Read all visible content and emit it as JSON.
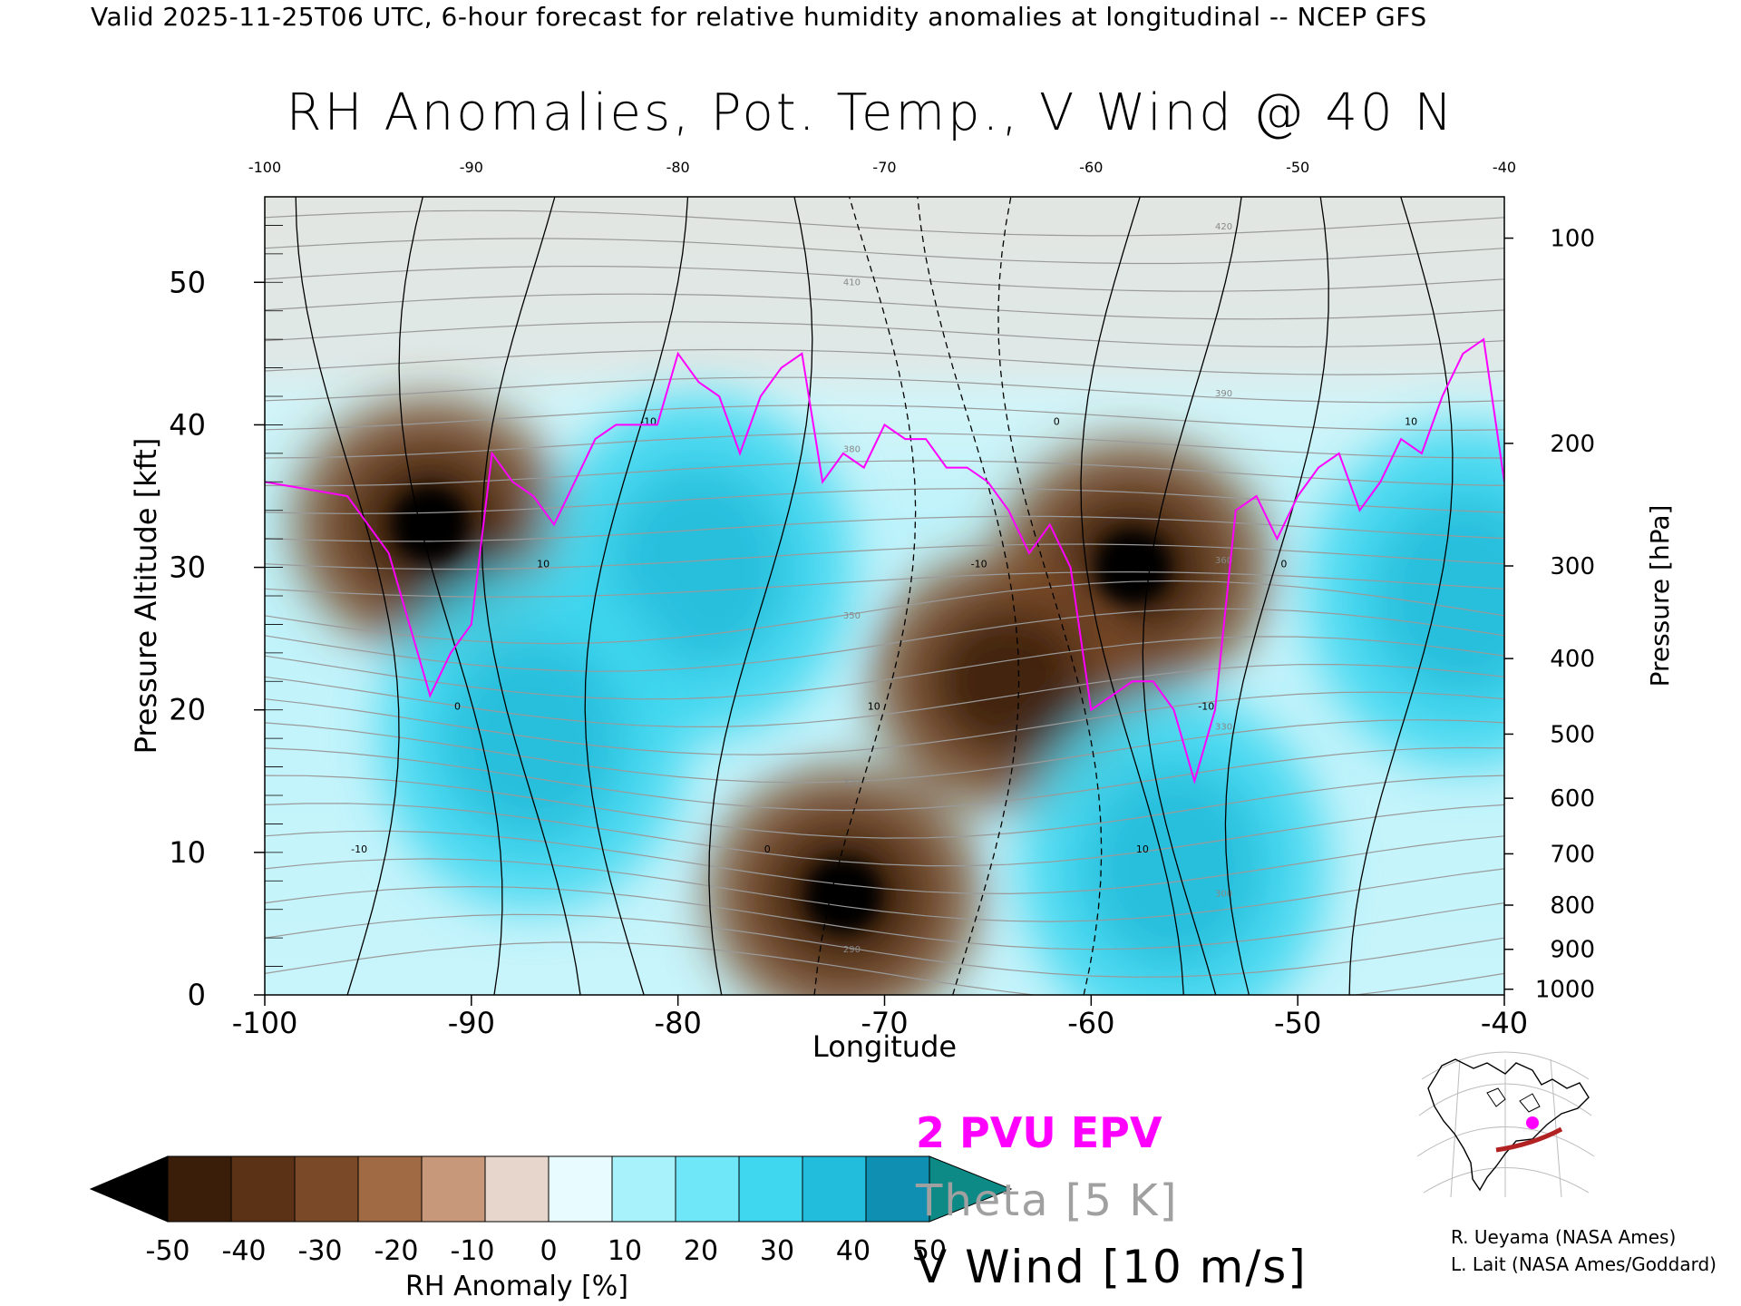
{
  "header": {
    "valid_line": "Valid 2025-11-25T06 UTC, 6-hour forecast for relative humidity anomalies at longitudinal -- NCEP GFS"
  },
  "chart_data": {
    "type": "heatmap",
    "title": "RH Anomalies, Pot. Temp., V Wind @ 40 N",
    "xlabel": "Longitude",
    "ylabel_left": "Pressure Altitude [kft]",
    "ylabel_right": "Pressure [hPa]",
    "xlim": [
      -100,
      -40
    ],
    "ylim": [
      0,
      56
    ],
    "x_ticks_bottom": [
      "-100",
      "-90",
      "-80",
      "-70",
      "-60",
      "-50",
      "-40"
    ],
    "x_ticks_top": [
      "-100",
      "-90",
      "-80",
      "-70",
      "-60",
      "-50",
      "-40"
    ],
    "y_ticks_left": [
      "0",
      "10",
      "20",
      "30",
      "40",
      "50"
    ],
    "y_ticks_left_values": [
      0,
      10,
      20,
      30,
      40,
      50
    ],
    "y_ticks_right": [
      "1000",
      "900",
      "800",
      "700",
      "600",
      "500",
      "400",
      "300",
      "200",
      "100"
    ],
    "y_ticks_right_kft": [
      0.4,
      3.2,
      6.3,
      9.9,
      13.8,
      18.3,
      23.6,
      30.1,
      38.7,
      53.1
    ],
    "anomaly_regions": [
      {
        "sign": "dry",
        "lon": -92,
        "kft": 33,
        "strength": 3
      },
      {
        "sign": "dry",
        "lon": -58,
        "kft": 30,
        "strength": 3
      },
      {
        "sign": "dry",
        "lon": -72,
        "kft": 7,
        "strength": 3
      },
      {
        "sign": "dry",
        "lon": -64,
        "kft": 22,
        "strength": 2
      },
      {
        "sign": "moist",
        "lon": -79,
        "kft": 30,
        "strength": 2
      },
      {
        "sign": "moist",
        "lon": -87,
        "kft": 18,
        "strength": 2
      },
      {
        "sign": "moist",
        "lon": -56,
        "kft": 9,
        "strength": 2
      },
      {
        "sign": "moist",
        "lon": -42,
        "kft": 28,
        "strength": 2
      }
    ],
    "pvu_2_line": {
      "lon": [
        -100,
        -96,
        -94,
        -92,
        -91,
        -90,
        -89,
        -88,
        -87,
        -86,
        -85,
        -84,
        -83,
        -82,
        -81,
        -80,
        -79,
        -78,
        -77,
        -76,
        -75,
        -74,
        -73,
        -72,
        -71,
        -70,
        -69,
        -68,
        -67,
        -66,
        -65,
        -64,
        -63,
        -62,
        -61,
        -60,
        -59,
        -58,
        -57,
        -56,
        -55,
        -54,
        -53,
        -52,
        -51,
        -50,
        -49,
        -48,
        -47,
        -46,
        -45,
        -44,
        -43,
        -42,
        -41,
        -40
      ],
      "kft": [
        36,
        35,
        31,
        21,
        24,
        26,
        38,
        36,
        35,
        33,
        36,
        39,
        40,
        40,
        40,
        45,
        43,
        42,
        38,
        42,
        44,
        45,
        36,
        38,
        37,
        40,
        39,
        39,
        37,
        37,
        36,
        34,
        31,
        33,
        30,
        20,
        21,
        22,
        22,
        20,
        15,
        20,
        34,
        35,
        32,
        35,
        37,
        38,
        34,
        36,
        39,
        38,
        42,
        45,
        46,
        36
      ]
    },
    "theta_levels_K": [
      "290",
      "300",
      "310",
      "320",
      "330",
      "340",
      "350",
      "360",
      "370",
      "380",
      "390",
      "400",
      "410",
      "420"
    ],
    "vwind_contours_ms": [
      "-10",
      "0",
      "10"
    ],
    "colorbar": {
      "label": "RH Anomaly [%]",
      "tick_labels": [
        "-50",
        "-40",
        "-30",
        "-20",
        "-10",
        "0",
        "10",
        "20",
        "30",
        "40",
        "50"
      ],
      "colors": [
        "#000000",
        "#3b1e0a",
        "#5c3216",
        "#7a4a28",
        "#a06a45",
        "#c8987a",
        "#e6d6cc",
        "#e8fbfe",
        "#a8f2fc",
        "#6fe7f8",
        "#3fd6f0",
        "#22bcdc",
        "#0f8fb2",
        "#0e8a86"
      ]
    },
    "legend": [
      {
        "text": "2 PVU EPV",
        "color": "#ff00ff"
      },
      {
        "text": "Theta [5 K]",
        "color": "#a0a0a0"
      },
      {
        "text": "V Wind [10 m/s]",
        "color": "#000000"
      }
    ]
  },
  "credits": [
    "R. Ueyama (NASA Ames)",
    "L. Lait (NASA Ames/Goddard)"
  ]
}
